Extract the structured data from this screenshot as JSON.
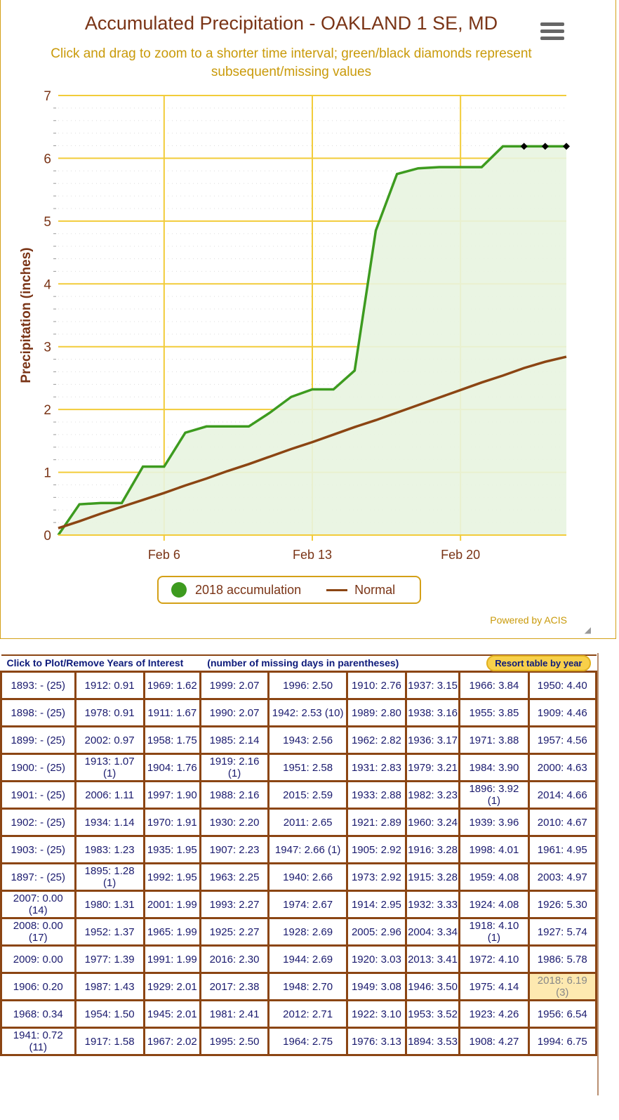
{
  "chart_data": {
    "type": "line",
    "title": "Accumulated Precipitation - OAKLAND 1 SE, MD",
    "subtitle": "Click and drag to zoom to a shorter time interval; green/black diamonds represent subsequent/missing values",
    "ylabel": "Precipitation (inches)",
    "xlabel": "",
    "ylim": [
      0,
      7
    ],
    "yticks": [
      "0",
      "1",
      "2",
      "3",
      "4",
      "5",
      "6",
      "7"
    ],
    "x_days": [
      1,
      2,
      3,
      4,
      5,
      6,
      7,
      8,
      9,
      10,
      11,
      12,
      13,
      14,
      15,
      16,
      17,
      18,
      19,
      20,
      21,
      22,
      23,
      24,
      25
    ],
    "xticks": [
      {
        "day": 6,
        "label": "Feb 6"
      },
      {
        "day": 13,
        "label": "Feb 13"
      },
      {
        "day": 20,
        "label": "Feb 20"
      }
    ],
    "series": [
      {
        "name": "2018 accumulation",
        "color": "#3d9b1f",
        "values": [
          0,
          0.49,
          0.51,
          0.51,
          1.09,
          1.09,
          1.63,
          1.73,
          1.73,
          1.73,
          1.95,
          2.2,
          2.32,
          2.32,
          2.62,
          4.85,
          5.75,
          5.84,
          5.86,
          5.86,
          5.86,
          6.19,
          6.19,
          6.19,
          6.19
        ],
        "missing_days": [
          23,
          24,
          25
        ]
      },
      {
        "name": "Normal",
        "color": "#8b4513",
        "values": [
          0.11,
          0.22,
          0.34,
          0.45,
          0.56,
          0.67,
          0.79,
          0.9,
          1.02,
          1.13,
          1.25,
          1.37,
          1.48,
          1.6,
          1.72,
          1.83,
          1.95,
          2.07,
          2.19,
          2.31,
          2.43,
          2.54,
          2.66,
          2.76,
          2.84
        ]
      }
    ],
    "legend": "bottom",
    "grid": true,
    "credit": "Powered by ACIS"
  },
  "table": {
    "header_left": "Click to Plot/Remove Years of Interest",
    "header_mid": "(number of missing days in parentheses)",
    "resort_label": "Resort table by year",
    "highlight": "2018: 6.19 (3)",
    "rows": [
      [
        "1893: - (25)",
        "1912: 0.91",
        "1969: 1.62",
        "1999: 2.07",
        "1996: 2.50",
        "1910: 2.76",
        "1937: 3.15",
        "1966: 3.84",
        "1950: 4.40"
      ],
      [
        "1898: - (25)",
        "1978: 0.91",
        "1911: 1.67",
        "1990: 2.07",
        "1942: 2.53 (10)",
        "1989: 2.80",
        "1938: 3.16",
        "1955: 3.85",
        "1909: 4.46"
      ],
      [
        "1899: - (25)",
        "2002: 0.97",
        "1958: 1.75",
        "1985: 2.14",
        "1943: 2.56",
        "1962: 2.82",
        "1936: 3.17",
        "1971: 3.88",
        "1957: 4.56"
      ],
      [
        "1900: - (25)",
        "1913: 1.07 (1)",
        "1904: 1.76",
        "1919: 2.16 (1)",
        "1951: 2.58",
        "1931: 2.83",
        "1979: 3.21",
        "1984: 3.90",
        "2000: 4.63"
      ],
      [
        "1901: - (25)",
        "2006: 1.11",
        "1997: 1.90",
        "1988: 2.16",
        "2015: 2.59",
        "1933: 2.88",
        "1982: 3.23",
        "1896: 3.92 (1)",
        "2014: 4.66"
      ],
      [
        "1902: - (25)",
        "1934: 1.14",
        "1970: 1.91",
        "1930: 2.20",
        "2011: 2.65",
        "1921: 2.89",
        "1960: 3.24",
        "1939: 3.96",
        "2010: 4.67"
      ],
      [
        "1903: - (25)",
        "1983: 1.23",
        "1935: 1.95",
        "1907: 2.23",
        "1947: 2.66 (1)",
        "1905: 2.92",
        "1916: 3.28",
        "1998: 4.01",
        "1961: 4.95"
      ],
      [
        "1897: - (25)",
        "1895: 1.28 (1)",
        "1992: 1.95",
        "1963: 2.25",
        "1940: 2.66",
        "1973: 2.92",
        "1915: 3.28",
        "1959: 4.08",
        "2003: 4.97"
      ],
      [
        "2007: 0.00 (14)",
        "1980: 1.31",
        "2001: 1.99",
        "1993: 2.27",
        "1974: 2.67",
        "1914: 2.95",
        "1932: 3.33",
        "1924: 4.08",
        "1926: 5.30"
      ],
      [
        "2008: 0.00 (17)",
        "1952: 1.37",
        "1965: 1.99",
        "1925: 2.27",
        "1928: 2.69",
        "2005: 2.96",
        "2004: 3.34",
        "1918: 4.10 (1)",
        "1927: 5.74"
      ],
      [
        "2009: 0.00",
        "1977: 1.39",
        "1991: 1.99",
        "2016: 2.30",
        "1944: 2.69",
        "1920: 3.03",
        "2013: 3.41",
        "1972: 4.10",
        "1986: 5.78"
      ],
      [
        "1906: 0.20",
        "1987: 1.43",
        "1929: 2.01",
        "2017: 2.38",
        "1948: 2.70",
        "1949: 3.08",
        "1946: 3.50",
        "1975: 4.14",
        "2018: 6.19 (3)"
      ],
      [
        "1968: 0.34",
        "1954: 1.50",
        "1945: 2.01",
        "1981: 2.41",
        "2012: 2.71",
        "1922: 3.10",
        "1953: 3.52",
        "1923: 4.26",
        "1956: 6.54"
      ],
      [
        "1941: 0.72 (11)",
        "1917: 1.58",
        "1967: 2.02",
        "1995: 2.50",
        "1964: 2.75",
        "1976: 3.13",
        "1894: 3.53",
        "1908: 4.27",
        "1994: 6.75"
      ]
    ]
  }
}
